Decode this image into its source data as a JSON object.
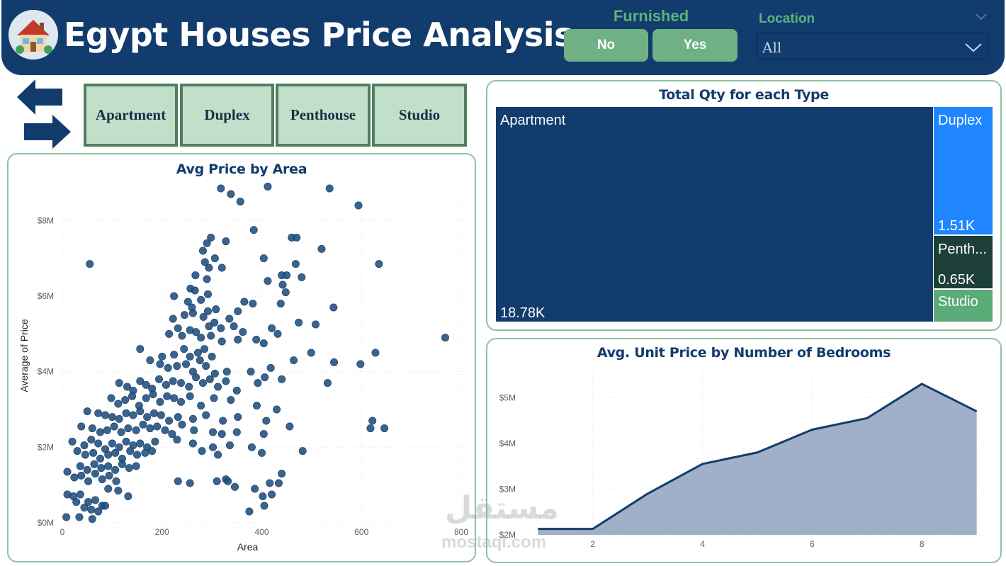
{
  "header": {
    "title": "Egypt Houses Price Analysis",
    "logo_icon": "house-icon"
  },
  "filters": {
    "furnished": {
      "label": "Furnished",
      "options": [
        "No",
        "Yes"
      ]
    },
    "location": {
      "label": "Location",
      "selected": "All"
    }
  },
  "navigation": {
    "back_icon": "arrow-left-icon",
    "forward_icon": "arrow-right-icon"
  },
  "type_buttons": [
    "Apartment",
    "Duplex",
    "Penthouse",
    "Studio"
  ],
  "colors": {
    "navy": "#123c6d",
    "green_accent": "#6fb085",
    "card_border": "#8fc29f",
    "scatter_point": "#1f4e7e",
    "area_fill": "#a0b0c8",
    "duplex": "#1f86ff",
    "penthouse": "#1c4038",
    "studio": "#5aab77"
  },
  "chart_data": [
    {
      "type": "scatter",
      "title": "Avg Price by Area",
      "xlabel": "Area",
      "ylabel": "Average of Price",
      "xlim": [
        0,
        800
      ],
      "ylim": [
        0,
        9000000
      ],
      "x_ticks": [
        {
          "v": 0,
          "label": "0"
        },
        {
          "v": 200,
          "label": "200"
        },
        {
          "v": 400,
          "label": "400"
        },
        {
          "v": 600,
          "label": "600"
        },
        {
          "v": 800,
          "label": "800"
        }
      ],
      "y_ticks": [
        {
          "v": 0,
          "label": "$0M"
        },
        {
          "v": 2000000,
          "label": "$2M"
        },
        {
          "v": 4000000,
          "label": "$4M"
        },
        {
          "v": 6000000,
          "label": "$6M"
        },
        {
          "v": 8000000,
          "label": "$8M"
        }
      ],
      "grid": true,
      "points": [
        [
          55,
          6850000
        ],
        [
          318,
          8850000
        ],
        [
          338,
          8700000
        ],
        [
          357,
          8500000
        ],
        [
          412,
          8900000
        ],
        [
          536,
          8850000
        ],
        [
          594,
          8400000
        ],
        [
          384,
          7750000
        ],
        [
          298,
          7550000
        ],
        [
          328,
          7450000
        ],
        [
          290,
          7400000
        ],
        [
          460,
          7550000
        ],
        [
          470,
          7550000
        ],
        [
          520,
          7250000
        ],
        [
          282,
          7200000
        ],
        [
          306,
          7000000
        ],
        [
          404,
          7000000
        ],
        [
          635,
          6850000
        ],
        [
          286,
          6900000
        ],
        [
          294,
          6750000
        ],
        [
          468,
          6850000
        ],
        [
          320,
          6750000
        ],
        [
          440,
          6550000
        ],
        [
          450,
          6550000
        ],
        [
          267,
          6550000
        ],
        [
          290,
          6450000
        ],
        [
          412,
          6400000
        ],
        [
          480,
          6500000
        ],
        [
          257,
          6200000
        ],
        [
          266,
          6150000
        ],
        [
          292,
          6050000
        ],
        [
          442,
          6300000
        ],
        [
          448,
          6100000
        ],
        [
          224,
          6000000
        ],
        [
          252,
          5850000
        ],
        [
          278,
          5900000
        ],
        [
          365,
          5850000
        ],
        [
          260,
          5700000
        ],
        [
          292,
          5600000
        ],
        [
          308,
          5650000
        ],
        [
          352,
          5600000
        ],
        [
          382,
          5800000
        ],
        [
          438,
          5800000
        ],
        [
          544,
          5700000
        ],
        [
          245,
          5500000
        ],
        [
          262,
          5550000
        ],
        [
          283,
          5450000
        ],
        [
          305,
          5300000
        ],
        [
          335,
          5400000
        ],
        [
          222,
          5400000
        ],
        [
          232,
          5150000
        ],
        [
          256,
          5100000
        ],
        [
          268,
          5050000
        ],
        [
          294,
          5200000
        ],
        [
          318,
          5150000
        ],
        [
          344,
          5200000
        ],
        [
          474,
          5300000
        ],
        [
          508,
          5250000
        ],
        [
          214,
          5000000
        ],
        [
          240,
          4950000
        ],
        [
          278,
          4900000
        ],
        [
          298,
          4950000
        ],
        [
          320,
          4800000
        ],
        [
          362,
          5050000
        ],
        [
          420,
          5150000
        ],
        [
          432,
          5000000
        ],
        [
          156,
          4600000
        ],
        [
          200,
          4400000
        ],
        [
          224,
          4450000
        ],
        [
          244,
          4600000
        ],
        [
          256,
          4400000
        ],
        [
          272,
          4500000
        ],
        [
          285,
          4600000
        ],
        [
          300,
          4400000
        ],
        [
          352,
          4850000
        ],
        [
          389,
          4850000
        ],
        [
          404,
          4750000
        ],
        [
          499,
          4500000
        ],
        [
          545,
          4250000
        ],
        [
          598,
          4200000
        ],
        [
          628,
          4500000
        ],
        [
          768,
          4900000
        ],
        [
          176,
          4300000
        ],
        [
          196,
          4200000
        ],
        [
          212,
          4100000
        ],
        [
          230,
          4150000
        ],
        [
          248,
          4200000
        ],
        [
          262,
          4000000
        ],
        [
          276,
          4300000
        ],
        [
          288,
          4150000
        ],
        [
          306,
          3950000
        ],
        [
          330,
          4000000
        ],
        [
          378,
          4000000
        ],
        [
          418,
          4100000
        ],
        [
          464,
          4300000
        ],
        [
          114,
          3700000
        ],
        [
          130,
          3600000
        ],
        [
          142,
          3500000
        ],
        [
          156,
          3750000
        ],
        [
          168,
          3650000
        ],
        [
          180,
          3550000
        ],
        [
          194,
          3800000
        ],
        [
          208,
          3650000
        ],
        [
          222,
          3750000
        ],
        [
          238,
          3700000
        ],
        [
          254,
          3600000
        ],
        [
          268,
          3850000
        ],
        [
          282,
          3700000
        ],
        [
          296,
          3800000
        ],
        [
          312,
          3600000
        ],
        [
          328,
          3750000
        ],
        [
          350,
          3500000
        ],
        [
          392,
          3700000
        ],
        [
          406,
          3850000
        ],
        [
          440,
          3800000
        ],
        [
          532,
          3700000
        ],
        [
          98,
          3300000
        ],
        [
          112,
          3150000
        ],
        [
          126,
          3250000
        ],
        [
          140,
          3350000
        ],
        [
          154,
          3100000
        ],
        [
          168,
          3300000
        ],
        [
          182,
          3400000
        ],
        [
          196,
          3200000
        ],
        [
          210,
          3350000
        ],
        [
          224,
          3300000
        ],
        [
          238,
          3200000
        ],
        [
          256,
          3350000
        ],
        [
          278,
          3100000
        ],
        [
          304,
          3300000
        ],
        [
          338,
          3250000
        ],
        [
          390,
          3100000
        ],
        [
          430,
          3000000
        ],
        [
          50,
          2950000
        ],
        [
          72,
          2900000
        ],
        [
          86,
          2850000
        ],
        [
          100,
          2800000
        ],
        [
          114,
          2750000
        ],
        [
          128,
          2900000
        ],
        [
          142,
          2850000
        ],
        [
          156,
          2950000
        ],
        [
          170,
          2800000
        ],
        [
          184,
          2900000
        ],
        [
          198,
          2850000
        ],
        [
          214,
          2700000
        ],
        [
          232,
          2800000
        ],
        [
          262,
          2750000
        ],
        [
          288,
          2850000
        ],
        [
          322,
          2700000
        ],
        [
          352,
          2800000
        ],
        [
          409,
          2700000
        ],
        [
          622,
          2700000
        ],
        [
          38,
          2550000
        ],
        [
          60,
          2500000
        ],
        [
          76,
          2400000
        ],
        [
          90,
          2450000
        ],
        [
          104,
          2550000
        ],
        [
          118,
          2400000
        ],
        [
          132,
          2500000
        ],
        [
          148,
          2450000
        ],
        [
          162,
          2600000
        ],
        [
          176,
          2500000
        ],
        [
          190,
          2550000
        ],
        [
          206,
          2450000
        ],
        [
          220,
          2350000
        ],
        [
          240,
          2600000
        ],
        [
          264,
          2450000
        ],
        [
          302,
          2400000
        ],
        [
          320,
          2350000
        ],
        [
          350,
          2400000
        ],
        [
          404,
          2350000
        ],
        [
          456,
          2550000
        ],
        [
          618,
          2500000
        ],
        [
          646,
          2500000
        ],
        [
          20,
          2150000
        ],
        [
          44,
          2050000
        ],
        [
          58,
          2200000
        ],
        [
          72,
          2100000
        ],
        [
          86,
          1950000
        ],
        [
          100,
          2100000
        ],
        [
          114,
          2000000
        ],
        [
          128,
          2150000
        ],
        [
          142,
          2050000
        ],
        [
          156,
          2100000
        ],
        [
          170,
          2000000
        ],
        [
          186,
          2150000
        ],
        [
          230,
          2200000
        ],
        [
          262,
          2100000
        ],
        [
          302,
          2000000
        ],
        [
          336,
          2050000
        ],
        [
          380,
          2000000
        ],
        [
          30,
          1900000
        ],
        [
          46,
          1800000
        ],
        [
          62,
          1850000
        ],
        [
          76,
          1700000
        ],
        [
          92,
          1800000
        ],
        [
          106,
          1850000
        ],
        [
          120,
          1700000
        ],
        [
          136,
          1900000
        ],
        [
          150,
          1800000
        ],
        [
          166,
          1850000
        ],
        [
          180,
          1900000
        ],
        [
          280,
          1900000
        ],
        [
          312,
          1800000
        ],
        [
          400,
          1850000
        ],
        [
          482,
          1900000
        ],
        [
          36,
          1500000
        ],
        [
          50,
          1400000
        ],
        [
          64,
          1550000
        ],
        [
          78,
          1450000
        ],
        [
          92,
          1500000
        ],
        [
          106,
          1400000
        ],
        [
          120,
          1550000
        ],
        [
          134,
          1450000
        ],
        [
          148,
          1500000
        ],
        [
          10,
          1350000
        ],
        [
          24,
          1200000
        ],
        [
          38,
          1250000
        ],
        [
          52,
          1100000
        ],
        [
          66,
          1300000
        ],
        [
          80,
          1150000
        ],
        [
          94,
          1250000
        ],
        [
          108,
          1100000
        ],
        [
          232,
          1100000
        ],
        [
          310,
          1100000
        ],
        [
          328,
          1150000
        ],
        [
          332,
          1100000
        ],
        [
          416,
          1050000
        ],
        [
          440,
          1300000
        ],
        [
          10,
          750000
        ],
        [
          22,
          700000
        ],
        [
          36,
          750000
        ],
        [
          52,
          550000
        ],
        [
          66,
          600000
        ],
        [
          80,
          450000
        ],
        [
          92,
          900000
        ],
        [
          112,
          850000
        ],
        [
          132,
          700000
        ],
        [
          256,
          1050000
        ],
        [
          346,
          950000
        ],
        [
          386,
          900000
        ],
        [
          434,
          1050000
        ],
        [
          28,
          550000
        ],
        [
          44,
          400000
        ],
        [
          58,
          350000
        ],
        [
          72,
          300000
        ],
        [
          86,
          450000
        ],
        [
          8,
          150000
        ],
        [
          34,
          150000
        ],
        [
          60,
          100000
        ],
        [
          375,
          300000
        ],
        [
          402,
          700000
        ],
        [
          405,
          450000
        ],
        [
          420,
          750000
        ]
      ]
    },
    {
      "type": "treemap",
      "title": "Total Qty for each Type",
      "items": [
        {
          "name": "Apartment",
          "value": 18780,
          "label": "18.78K"
        },
        {
          "name": "Duplex",
          "value": 1510,
          "label": "1.51K"
        },
        {
          "name": "Penth...",
          "value": 650,
          "label": "0.65K"
        },
        {
          "name": "Studio",
          "value": 300,
          "label": ""
        }
      ]
    },
    {
      "type": "area",
      "title": "Avg. Unit Price by Number of Bedrooms",
      "xlabel": "",
      "ylabel": "",
      "x": [
        1,
        2,
        3,
        4,
        5,
        6,
        7,
        8,
        9
      ],
      "values": [
        2130000,
        2130000,
        2900000,
        3550000,
        3800000,
        4300000,
        4550000,
        5300000,
        4700000
      ],
      "xlim": [
        0.75,
        9.25
      ],
      "ylim": [
        2000000,
        5500000
      ],
      "x_ticks": [
        {
          "v": 2,
          "label": "2"
        },
        {
          "v": 4,
          "label": "4"
        },
        {
          "v": 6,
          "label": "6"
        },
        {
          "v": 8,
          "label": "8"
        }
      ],
      "y_ticks": [
        {
          "v": 2000000,
          "label": "$2M"
        },
        {
          "v": 3000000,
          "label": "$3M"
        },
        {
          "v": 4000000,
          "label": "$4M"
        },
        {
          "v": 5000000,
          "label": "$5M"
        }
      ],
      "grid": true
    }
  ],
  "watermark": {
    "arabic": "مستقل",
    "latin": "mostaql.com"
  }
}
